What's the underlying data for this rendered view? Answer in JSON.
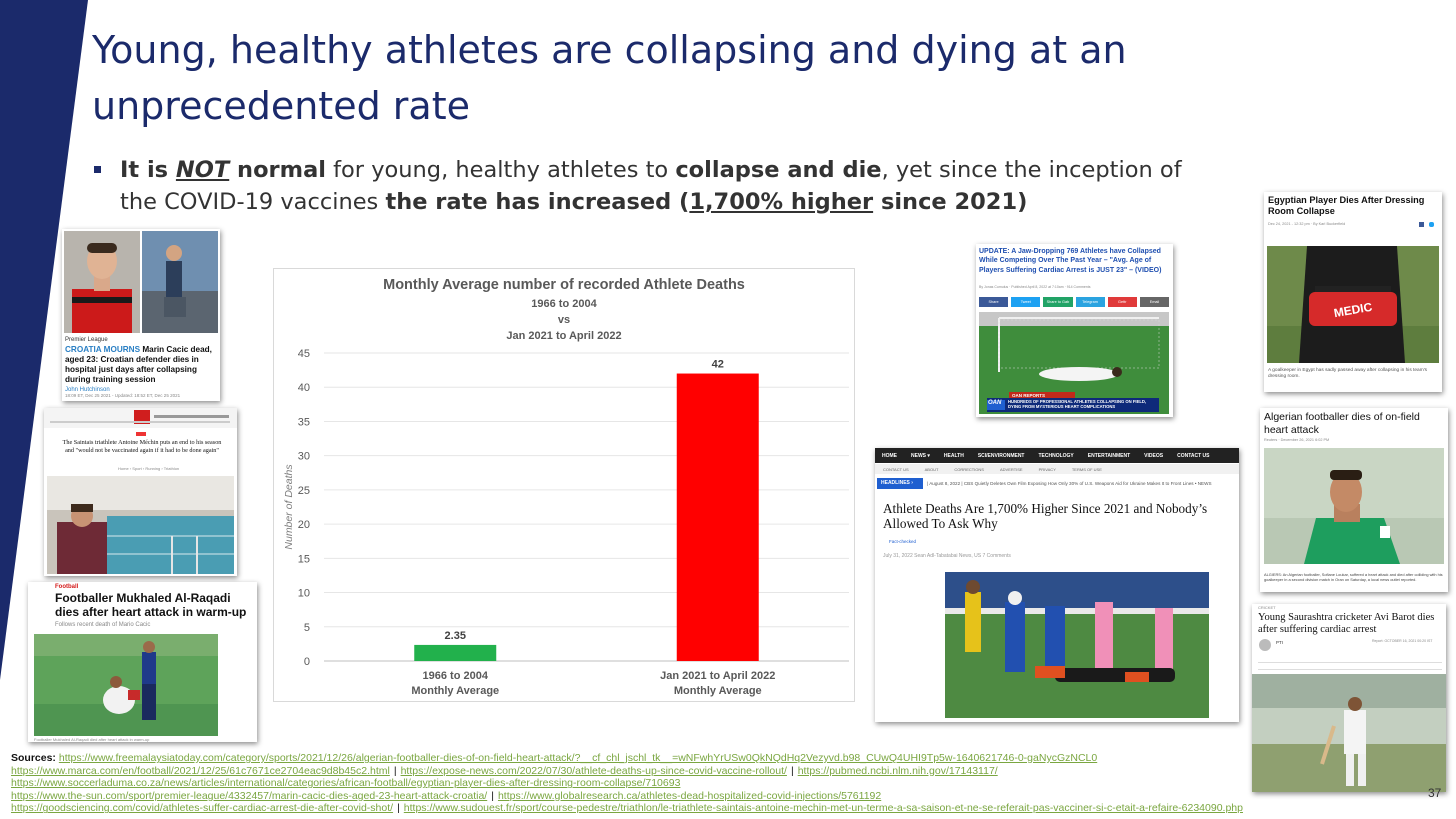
{
  "slide": {
    "title": "Young, healthy athletes are collapsing and dying at an unprecedented rate",
    "bullet": {
      "p1": "It is ",
      "p2": "NOT",
      "p3": " normal",
      "p4": " for young, healthy athletes to ",
      "p5": "collapse and die",
      "p6": ", yet since the inception of the COVID-19 vaccines ",
      "p7": "the rate has increased (",
      "p8": "1,700% higher",
      "p9": " since 2021)"
    },
    "page_number": "37",
    "colors": {
      "navy": "#1b2a6b",
      "green_bar": "#22b14c",
      "red_bar": "#ff0000",
      "link_green": "#7aa640"
    }
  },
  "chart_data": {
    "type": "bar",
    "title": "Monthly Average number of recorded Athlete Deaths",
    "subtitle_lines": [
      "1966 to 2004",
      "vs",
      "Jan 2021 to April 2022"
    ],
    "categories": [
      {
        "line1": "1966 to 2004",
        "line2": "Monthly Average"
      },
      {
        "line1": "Jan 2021 to April 2022",
        "line2": "Monthly Average"
      }
    ],
    "values": [
      2.35,
      42
    ],
    "value_labels": [
      "2.35",
      "42"
    ],
    "bar_colors": [
      "#22b14c",
      "#ff0000"
    ],
    "ylabel": "Number of Deaths",
    "ylim": [
      0,
      45
    ],
    "yticks": [
      0,
      5,
      10,
      15,
      20,
      25,
      30,
      35,
      40,
      45
    ],
    "grid": true
  },
  "articles": {
    "croatia": {
      "section": "Premier League",
      "kicker": "CROATIA MOURNS",
      "headline": " Marin Cacic dead, aged 23: Croatian defender dies in hospital just days after collapsing during training session",
      "byline": "John Hutchinson",
      "date": "18:09 ET, Dec 25 2021 - Updated: 18:52 ET, Dec 25 2021"
    },
    "saintais": {
      "headline": "The Saintais triathlete Antoine Méchin puts an end to his season and \"would not be vaccinated again if it had to be done again\"",
      "crumbs": "Home › Sport › Running › Triathlon"
    },
    "alraqadi": {
      "section": "Football",
      "headline": "Footballer Mukhaled Al-Raqadi dies after heart attack in warm-up",
      "sub": "Follows recent death of Mario Cacic",
      "caption": "Footballer Mukhaled Al-Raqadi died after heart attack in warm-up"
    },
    "update769": {
      "headline": "UPDATE: A Jaw-Dropping 769 Athletes have Collapsed While Competing Over The Past Year – \"Avg. Age of Players Suffering Cardiac Arrest is JUST 23\" – (VIDEO)",
      "meta": "By Jonas Cumulus · Published April 8, 2022 at 7:10am · 914 Comments",
      "share_buttons": [
        "Share",
        "Tweet",
        "Share to Gab",
        "Telegram",
        "Gettr",
        "Email"
      ],
      "tv_tag": "OAN REPORTS",
      "tv_logo": "OAN",
      "tv_caption": "HUNDREDS OF PROFESSIONAL ATHLETES COLLAPSING ON FIELD, DYING FROM MYSTERIOUS HEART COMPLICATIONS"
    },
    "expose": {
      "nav": [
        "HOME",
        "NEWS ▾",
        "HEALTH",
        "SCI/ENVIRONMENT",
        "TECHNOLOGY",
        "ENTERTAINMENT",
        "VIDEOS",
        "CONTACT US"
      ],
      "subnav": [
        "CONTACT US",
        "ABOUT",
        "CORRECTIONS",
        "ADVERTISE",
        "PRIVACY",
        "TERMS OF USE"
      ],
      "headlines_label": "HEADLINES ›",
      "ticker": "| August 8, 2022 | CBS Quietly Deletes Own Film Exposing How Only 30% of U.S. Weapons Aid for Ukraine Makes It to Front Lines • NEWS",
      "headline": "Athlete Deaths Are 1,700% Higher Since 2021 and Nobody’s Allowed To Ask Why",
      "badge": "Fact-checked",
      "meta": "July 31, 2022   Sean Adl-Tabatabai   News, US   7 Comments"
    },
    "egypt": {
      "headline": "Egyptian Player Dies After Dressing Room Collapse",
      "meta": "Dec 24, 2021 - 12:32 pm · By Karl Buckerfield",
      "bag_label": "MEDIC",
      "caption": "A goalkeeper in Egypt has sadly passed away after collapsing in his team's dressing room."
    },
    "algeria": {
      "headline": "Algerian footballer dies of on-field heart attack",
      "meta": "Reuters · December 26, 2021 6:02 PM",
      "caption": "ALGIERS: An Algerian footballer, Sofiane Loukar, suffered a heart attack and died after colliding with his goalkeeper in a second division match in Oran on Saturday, a local news outlet reported."
    },
    "barot": {
      "section": "CRICKET",
      "headline": "Young Saurashtra cricketer Avi Barot dies after suffering cardiac arrest",
      "byline": "PTI",
      "meta": "Report: OCTOBER 16, 2021 00:20 IST"
    }
  },
  "sources": {
    "label": "Sources:",
    "lines": [
      [
        "https://www.freemalaysiatoday.com/category/sports/2021/12/26/algerian-footballer-dies-of-on-field-heart-attack/?__cf_chl_jschl_tk__=wNFwhYrUSw0QkNQdHq2Vezyvd.b98_CUwQ4UHI9Tp5w-1640621746-0-gaNycGzNCL0"
      ],
      [
        "https://www.marca.com/en/football/2021/12/25/61c7671ce2704eac9d8b45c2.html",
        "https://expose-news.com/2022/07/30/athlete-deaths-up-since-covid-vaccine-rollout/",
        "https://pubmed.ncbi.nlm.nih.gov/17143117/"
      ],
      [
        "https://www.soccerladuma.co.za/news/articles/international/categories/african-football/egyptian-player-dies-after-dressing-room-collapse/710693"
      ],
      [
        "https://www.the-sun.com/sport/premier-league/4332457/marin-cacic-dies-aged-23-heart-attack-croatia/",
        "https://www.globalresearch.ca/athletes-dead-hospitalized-covid-injections/5761192"
      ],
      [
        "https://goodsciencing.com/covid/athletes-suffer-cardiac-arrest-die-after-covid-shot/",
        "https://www.sudouest.fr/sport/course-pedestre/triathlon/le-triathlete-saintais-antoine-mechin-met-un-terme-a-sa-saison-et-ne-se-referait-pas-vacciner-si-c-etait-a-refaire-6234090.php"
      ]
    ],
    "separator": "|"
  }
}
